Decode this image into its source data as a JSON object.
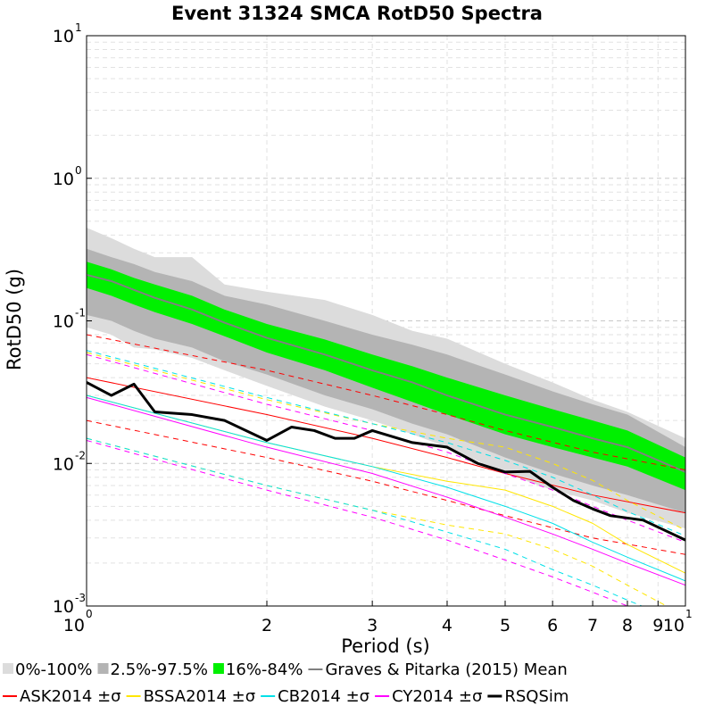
{
  "chart_data": {
    "type": "line",
    "title": "Event 31324 SMCA RotD50 Spectra",
    "xlabel": "Period (s)",
    "ylabel": "RotD50 (g)",
    "xscale": "log",
    "yscale": "log",
    "xlim": [
      1,
      10
    ],
    "ylim": [
      0.001,
      10
    ],
    "grid": true,
    "x_ticks": [
      {
        "value": 1,
        "base": "10",
        "exp": "0"
      },
      {
        "value": 2,
        "base": "2",
        "exp": ""
      },
      {
        "value": 3,
        "base": "3",
        "exp": ""
      },
      {
        "value": 4,
        "base": "4",
        "exp": ""
      },
      {
        "value": 5,
        "base": "5",
        "exp": ""
      },
      {
        "value": 6,
        "base": "6",
        "exp": ""
      },
      {
        "value": 7,
        "base": "7",
        "exp": ""
      },
      {
        "value": 8,
        "base": "8",
        "exp": ""
      },
      {
        "value": 9,
        "base": "9",
        "exp": ""
      },
      {
        "value": 10,
        "base": "10",
        "exp": "1"
      }
    ],
    "y_ticks": [
      {
        "value": 0.001,
        "base": "10",
        "exp": "-3"
      },
      {
        "value": 0.01,
        "base": "10",
        "exp": "-2"
      },
      {
        "value": 0.1,
        "base": "10",
        "exp": "-1"
      },
      {
        "value": 1,
        "base": "10",
        "exp": "0"
      },
      {
        "value": 10,
        "base": "10",
        "exp": "1"
      }
    ],
    "legend": {
      "placement": "bottom",
      "rows": [
        [
          {
            "label": "0%-100%",
            "type": "box",
            "color": "#dcdcdc"
          },
          {
            "label": "2.5%-97.5%",
            "type": "box",
            "color": "#b4b4b4"
          },
          {
            "label": "16%-84%",
            "type": "box",
            "color": "#00f000"
          },
          {
            "label": "Graves & Pitarka (2015) Mean",
            "type": "line",
            "color": "#808080"
          }
        ],
        [
          {
            "label": "ASK2014 ±σ",
            "type": "line",
            "color": "#ff0000"
          },
          {
            "label": "BSSA2014 ±σ",
            "type": "line",
            "color": "#ffe600"
          },
          {
            "label": "CB2014 ±σ",
            "type": "line",
            "color": "#00e0e8"
          },
          {
            "label": "CY2014 ±σ",
            "type": "line",
            "color": "#ff00ff"
          },
          {
            "label": "RSQSim",
            "type": "line",
            "color": "#000000"
          }
        ]
      ]
    },
    "bands": [
      {
        "name": "0%-100%",
        "color": "#dcdcdc",
        "x": [
          1,
          1.1,
          1.2,
          1.3,
          1.5,
          1.7,
          2,
          2.5,
          3,
          3.5,
          4,
          5,
          6,
          7,
          8,
          10
        ],
        "lower": [
          0.09,
          0.08,
          0.065,
          0.063,
          0.055,
          0.045,
          0.035,
          0.025,
          0.02,
          0.016,
          0.013,
          0.0085,
          0.0065,
          0.0055,
          0.0045,
          0.0035
        ],
        "upper": [
          0.45,
          0.38,
          0.32,
          0.28,
          0.28,
          0.18,
          0.16,
          0.14,
          0.11,
          0.085,
          0.075,
          0.05,
          0.037,
          0.028,
          0.023,
          0.015
        ]
      },
      {
        "name": "2.5%-97.5%",
        "color": "#b4b4b4",
        "x": [
          1,
          1.1,
          1.2,
          1.3,
          1.5,
          1.7,
          2,
          2.5,
          3,
          3.5,
          4,
          5,
          6,
          7,
          8,
          10
        ],
        "lower": [
          0.11,
          0.1,
          0.085,
          0.075,
          0.065,
          0.052,
          0.042,
          0.03,
          0.024,
          0.019,
          0.016,
          0.011,
          0.0085,
          0.007,
          0.006,
          0.0045
        ],
        "upper": [
          0.32,
          0.28,
          0.25,
          0.22,
          0.19,
          0.15,
          0.13,
          0.1,
          0.08,
          0.068,
          0.058,
          0.042,
          0.032,
          0.026,
          0.022,
          0.013
        ]
      },
      {
        "name": "16%-84%",
        "color": "#00f000",
        "x": [
          1,
          1.1,
          1.2,
          1.3,
          1.5,
          1.7,
          2,
          2.5,
          3,
          3.5,
          4,
          5,
          6,
          7,
          8,
          10
        ],
        "lower": [
          0.17,
          0.15,
          0.13,
          0.115,
          0.095,
          0.078,
          0.06,
          0.045,
          0.034,
          0.027,
          0.022,
          0.016,
          0.013,
          0.011,
          0.0095,
          0.0065
        ],
        "upper": [
          0.26,
          0.23,
          0.2,
          0.18,
          0.15,
          0.12,
          0.095,
          0.074,
          0.058,
          0.048,
          0.04,
          0.03,
          0.024,
          0.02,
          0.017,
          0.011
        ]
      }
    ],
    "series": [
      {
        "name": "Graves & Pitarka (2015) Mean",
        "color": "#808080",
        "width": 2,
        "dash": "",
        "x": [
          1,
          1.1,
          1.2,
          1.3,
          1.5,
          1.7,
          2,
          2.5,
          3,
          3.5,
          4,
          5,
          6,
          7,
          8,
          10
        ],
        "values": [
          0.21,
          0.19,
          0.165,
          0.145,
          0.12,
          0.097,
          0.076,
          0.058,
          0.045,
          0.037,
          0.03,
          0.022,
          0.018,
          0.015,
          0.013,
          0.0087
        ]
      },
      {
        "name": "ASK2014 ±σ",
        "color": "#ff0000",
        "width": 1,
        "dash": "",
        "x": [
          1,
          2,
          3,
          4,
          5,
          7,
          10
        ],
        "values": [
          0.04,
          0.022,
          0.015,
          0.011,
          0.0085,
          0.006,
          0.0045
        ]
      },
      {
        "name": "ASK2014 ±σ",
        "color": "#ff0000",
        "width": 1,
        "dash": "6,5",
        "x": [
          1,
          2,
          3,
          4,
          5,
          7,
          10
        ],
        "values": [
          0.08,
          0.045,
          0.03,
          0.022,
          0.017,
          0.012,
          0.009
        ]
      },
      {
        "name": "ASK2014 ±σ",
        "color": "#ff0000",
        "width": 1,
        "dash": "6,5",
        "x": [
          1,
          2,
          3,
          4,
          5,
          7,
          10
        ],
        "values": [
          0.02,
          0.011,
          0.0075,
          0.0055,
          0.0043,
          0.003,
          0.0023
        ]
      },
      {
        "name": "BSSA2014 ±σ",
        "color": "#ffe600",
        "width": 1,
        "dash": "",
        "x": [
          1,
          2,
          3,
          4,
          5,
          6,
          7,
          8,
          10
        ],
        "values": [
          0.03,
          0.014,
          0.0095,
          0.0075,
          0.0065,
          0.005,
          0.0038,
          0.0027,
          0.0017
        ]
      },
      {
        "name": "BSSA2014 ±σ",
        "color": "#ffe600",
        "width": 1,
        "dash": "6,5",
        "x": [
          1,
          2,
          3,
          4,
          5,
          6,
          7,
          8,
          10
        ],
        "values": [
          0.06,
          0.028,
          0.019,
          0.015,
          0.013,
          0.01,
          0.0076,
          0.0055,
          0.0034
        ]
      },
      {
        "name": "BSSA2014 ±σ",
        "color": "#ffe600",
        "width": 1,
        "dash": "6,5",
        "x": [
          1,
          2,
          3,
          4,
          5,
          6,
          7,
          8,
          10
        ],
        "values": [
          0.015,
          0.007,
          0.0047,
          0.0037,
          0.0032,
          0.0025,
          0.0019,
          0.0014,
          0.00085
        ]
      },
      {
        "name": "CB2014 ±σ",
        "color": "#00e0e8",
        "width": 1,
        "dash": "",
        "x": [
          1,
          2,
          3,
          4,
          5,
          6,
          7,
          8,
          10
        ],
        "values": [
          0.03,
          0.014,
          0.0095,
          0.0068,
          0.005,
          0.0038,
          0.0028,
          0.0022,
          0.0015
        ]
      },
      {
        "name": "CB2014 ±σ",
        "color": "#00e0e8",
        "width": 1,
        "dash": "6,5",
        "x": [
          1,
          2,
          3,
          4,
          5,
          6,
          7,
          8,
          10
        ],
        "values": [
          0.062,
          0.029,
          0.019,
          0.014,
          0.0105,
          0.008,
          0.006,
          0.0046,
          0.0031
        ]
      },
      {
        "name": "CB2014 ±σ",
        "color": "#00e0e8",
        "width": 1,
        "dash": "6,5",
        "x": [
          1,
          2,
          3,
          4,
          5,
          6,
          7,
          8,
          10
        ],
        "values": [
          0.015,
          0.007,
          0.0047,
          0.0033,
          0.0025,
          0.0018,
          0.0014,
          0.0011,
          0.00075
        ]
      },
      {
        "name": "CY2014 ±σ",
        "color": "#ff00ff",
        "width": 1,
        "dash": "",
        "x": [
          1,
          2,
          3,
          4,
          5,
          6,
          7,
          8,
          10
        ],
        "values": [
          0.029,
          0.013,
          0.0085,
          0.0058,
          0.0042,
          0.0032,
          0.0025,
          0.002,
          0.0014
        ]
      },
      {
        "name": "CY2014 ±σ",
        "color": "#ff00ff",
        "width": 1,
        "dash": "6,5",
        "x": [
          1,
          2,
          3,
          4,
          5,
          6,
          7,
          8,
          10
        ],
        "values": [
          0.058,
          0.026,
          0.017,
          0.012,
          0.0085,
          0.0065,
          0.005,
          0.004,
          0.0028
        ]
      },
      {
        "name": "CY2014 ±σ",
        "color": "#ff00ff",
        "width": 1,
        "dash": "6,5",
        "x": [
          1,
          2,
          3,
          4,
          5,
          6,
          7,
          8,
          10
        ],
        "values": [
          0.0145,
          0.0065,
          0.0042,
          0.0029,
          0.0021,
          0.0016,
          0.00125,
          0.001,
          0.0007
        ]
      },
      {
        "name": "RSQSim",
        "color": "#000000",
        "width": 3,
        "dash": "",
        "x": [
          1,
          1.1,
          1.2,
          1.3,
          1.5,
          1.7,
          2,
          2.2,
          2.4,
          2.6,
          2.8,
          3,
          3.5,
          4,
          4.5,
          5,
          5.5,
          6,
          6.5,
          7,
          7.5,
          8.5,
          10
        ],
        "values": [
          0.037,
          0.03,
          0.036,
          0.023,
          0.022,
          0.02,
          0.0145,
          0.018,
          0.017,
          0.015,
          0.015,
          0.017,
          0.014,
          0.013,
          0.01,
          0.0087,
          0.0088,
          0.0068,
          0.0055,
          0.0048,
          0.0043,
          0.004,
          0.0029
        ]
      }
    ]
  }
}
